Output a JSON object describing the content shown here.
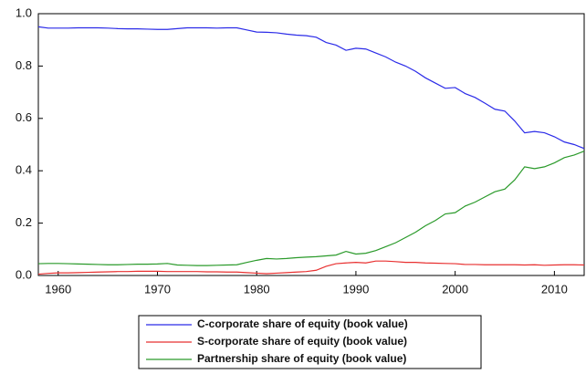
{
  "chart_data": {
    "type": "line",
    "x": [
      1958,
      1959,
      1960,
      1961,
      1962,
      1963,
      1964,
      1965,
      1966,
      1967,
      1968,
      1969,
      1970,
      1971,
      1972,
      1973,
      1974,
      1975,
      1976,
      1977,
      1978,
      1979,
      1980,
      1981,
      1982,
      1983,
      1984,
      1985,
      1986,
      1987,
      1988,
      1989,
      1990,
      1991,
      1992,
      1993,
      1994,
      1995,
      1996,
      1997,
      1998,
      1999,
      2000,
      2001,
      2002,
      2003,
      2004,
      2005,
      2006,
      2007,
      2008,
      2009,
      2010,
      2011,
      2012,
      2013
    ],
    "series": [
      {
        "name": "C-corporate share of equity (book value)",
        "color": "#2b2be8",
        "values": [
          0.95,
          0.945,
          0.945,
          0.945,
          0.946,
          0.946,
          0.946,
          0.945,
          0.943,
          0.942,
          0.942,
          0.941,
          0.94,
          0.94,
          0.943,
          0.946,
          0.946,
          0.946,
          0.945,
          0.946,
          0.946,
          0.938,
          0.93,
          0.929,
          0.927,
          0.922,
          0.918,
          0.916,
          0.91,
          0.89,
          0.88,
          0.86,
          0.868,
          0.865,
          0.85,
          0.835,
          0.815,
          0.8,
          0.78,
          0.755,
          0.735,
          0.715,
          0.718,
          0.695,
          0.68,
          0.658,
          0.635,
          0.628,
          0.59,
          0.545,
          0.55,
          0.545,
          0.53,
          0.51,
          0.5,
          0.485
        ]
      },
      {
        "name": "S-corporate share of equity (book value)",
        "color": "#e83030",
        "values": [
          0.005,
          0.008,
          0.01,
          0.01,
          0.011,
          0.012,
          0.013,
          0.014,
          0.015,
          0.015,
          0.016,
          0.016,
          0.016,
          0.015,
          0.015,
          0.015,
          0.015,
          0.014,
          0.014,
          0.013,
          0.013,
          0.011,
          0.009,
          0.007,
          0.009,
          0.011,
          0.013,
          0.015,
          0.02,
          0.035,
          0.045,
          0.048,
          0.05,
          0.048,
          0.055,
          0.055,
          0.053,
          0.05,
          0.05,
          0.048,
          0.047,
          0.046,
          0.045,
          0.042,
          0.042,
          0.041,
          0.041,
          0.041,
          0.041,
          0.04,
          0.041,
          0.039,
          0.04,
          0.041,
          0.041,
          0.04
        ]
      },
      {
        "name": "Partnership share of equity (book value)",
        "color": "#2a9a2a",
        "values": [
          0.045,
          0.046,
          0.046,
          0.045,
          0.044,
          0.043,
          0.042,
          0.041,
          0.041,
          0.042,
          0.043,
          0.043,
          0.044,
          0.046,
          0.04,
          0.039,
          0.038,
          0.038,
          0.039,
          0.04,
          0.041,
          0.05,
          0.058,
          0.065,
          0.063,
          0.065,
          0.068,
          0.07,
          0.072,
          0.075,
          0.078,
          0.092,
          0.082,
          0.085,
          0.095,
          0.11,
          0.125,
          0.145,
          0.165,
          0.19,
          0.21,
          0.235,
          0.24,
          0.265,
          0.28,
          0.3,
          0.32,
          0.33,
          0.365,
          0.415,
          0.408,
          0.415,
          0.43,
          0.45,
          0.46,
          0.475
        ]
      }
    ],
    "xlim": [
      1958,
      2013
    ],
    "xticks": [
      1960,
      1970,
      1980,
      1990,
      2000,
      2010
    ],
    "ylim": [
      0,
      1
    ],
    "yticks": [
      {
        "value": 0,
        "label": "0.0"
      },
      0.2,
      0.4,
      0.6,
      0.8,
      {
        "value": 1,
        "label": "1.0"
      }
    ],
    "grid": false,
    "legend": "bottom"
  }
}
